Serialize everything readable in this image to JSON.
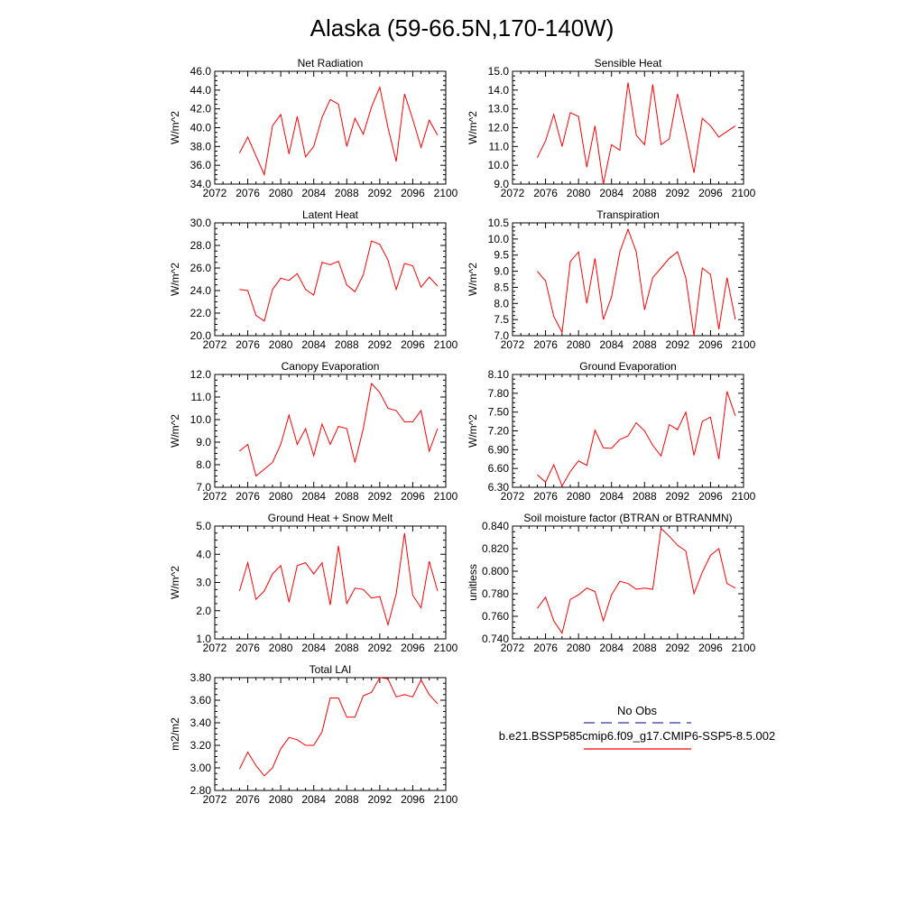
{
  "title": "Alaska (59-66.5N,170-140W)",
  "legend": {
    "obs_label": "No Obs",
    "model_label": "b.e21.BSSP585cmip6.f09_g17.CMIP6-SSP5-8.5.002",
    "obs_color": "#3333aa",
    "model_color": "#ff0000"
  },
  "chart_data": [
    {
      "type": "line",
      "title": "Net Radiation",
      "ylabel": "W/m^2",
      "xlim": [
        2072,
        2100
      ],
      "ylim": [
        34.0,
        46.0
      ],
      "xticks": [
        "2072",
        "2076",
        "2080",
        "2084",
        "2088",
        "2092",
        "2096",
        "2100"
      ],
      "yticks": [
        "34.0",
        "36.0",
        "38.0",
        "40.0",
        "42.0",
        "44.0",
        "46.0"
      ],
      "x": [
        2075,
        2076,
        2077,
        2078,
        2079,
        2080,
        2081,
        2082,
        2083,
        2084,
        2085,
        2086,
        2087,
        2088,
        2089,
        2090,
        2091,
        2092,
        2093,
        2094,
        2095,
        2096,
        2097,
        2098,
        2099
      ],
      "series": [
        {
          "values": [
            37.3,
            39.0,
            37.0,
            35.0,
            40.2,
            41.4,
            37.2,
            41.2,
            36.9,
            38.0,
            41.1,
            43.0,
            42.5,
            38.0,
            41.0,
            39.3,
            42.2,
            44.3,
            40.0,
            36.4,
            43.6,
            40.9,
            37.9,
            40.8,
            39.2
          ]
        }
      ]
    },
    {
      "type": "line",
      "title": "Sensible Heat",
      "ylabel": "W/m^2",
      "xlim": [
        2072,
        2100
      ],
      "ylim": [
        9.0,
        15.0
      ],
      "xticks": [
        "2072",
        "2076",
        "2080",
        "2084",
        "2088",
        "2092",
        "2096",
        "2100"
      ],
      "yticks": [
        "9.0",
        "10.0",
        "11.0",
        "12.0",
        "13.0",
        "14.0",
        "15.0"
      ],
      "x": [
        2075,
        2076,
        2077,
        2078,
        2079,
        2080,
        2081,
        2082,
        2083,
        2084,
        2085,
        2086,
        2087,
        2088,
        2089,
        2090,
        2091,
        2092,
        2093,
        2094,
        2095,
        2096,
        2097,
        2098,
        2099
      ],
      "series": [
        {
          "values": [
            10.4,
            11.3,
            12.7,
            11.0,
            12.8,
            12.6,
            9.9,
            12.1,
            9.0,
            11.1,
            10.8,
            14.4,
            11.6,
            11.1,
            14.3,
            11.1,
            11.4,
            13.8,
            11.8,
            9.6,
            12.5,
            12.1,
            11.5,
            11.8,
            12.1
          ]
        }
      ]
    },
    {
      "type": "line",
      "title": "Latent Heat",
      "ylabel": "W/m^2",
      "xlim": [
        2072,
        2100
      ],
      "ylim": [
        20.0,
        30.0
      ],
      "xticks": [
        "2072",
        "2076",
        "2080",
        "2084",
        "2088",
        "2092",
        "2096",
        "2100"
      ],
      "yticks": [
        "20.0",
        "22.0",
        "24.0",
        "26.0",
        "28.0",
        "30.0"
      ],
      "x": [
        2075,
        2076,
        2077,
        2078,
        2079,
        2080,
        2081,
        2082,
        2083,
        2084,
        2085,
        2086,
        2087,
        2088,
        2089,
        2090,
        2091,
        2092,
        2093,
        2094,
        2095,
        2096,
        2097,
        2098,
        2099
      ],
      "series": [
        {
          "values": [
            24.1,
            24.0,
            21.8,
            21.3,
            24.1,
            25.1,
            24.9,
            25.5,
            24.1,
            23.6,
            26.5,
            26.3,
            26.6,
            24.5,
            23.9,
            25.4,
            28.4,
            28.1,
            26.7,
            24.1,
            26.4,
            26.2,
            24.3,
            25.2,
            24.4
          ]
        }
      ]
    },
    {
      "type": "line",
      "title": "Transpiration",
      "ylabel": "W/m^2",
      "xlim": [
        2072,
        2100
      ],
      "ylim": [
        7.0,
        10.5
      ],
      "xticks": [
        "2072",
        "2076",
        "2080",
        "2084",
        "2088",
        "2092",
        "2096",
        "2100"
      ],
      "yticks": [
        "7.0",
        "7.5",
        "8.0",
        "8.5",
        "9.0",
        "9.5",
        "10.0",
        "10.5"
      ],
      "x": [
        2075,
        2076,
        2077,
        2078,
        2079,
        2080,
        2081,
        2082,
        2083,
        2084,
        2085,
        2086,
        2087,
        2088,
        2089,
        2090,
        2091,
        2092,
        2093,
        2094,
        2095,
        2096,
        2097,
        2098,
        2099
      ],
      "series": [
        {
          "values": [
            9.0,
            8.7,
            7.6,
            7.1,
            9.3,
            9.6,
            8.0,
            9.4,
            7.5,
            8.2,
            9.6,
            10.3,
            9.6,
            7.8,
            8.8,
            9.1,
            9.4,
            9.6,
            8.8,
            7.0,
            9.1,
            8.9,
            7.2,
            8.8,
            7.5
          ]
        }
      ]
    },
    {
      "type": "line",
      "title": "Canopy Evaporation",
      "ylabel": "W/m^2",
      "xlim": [
        2072,
        2100
      ],
      "ylim": [
        7.0,
        12.0
      ],
      "xticks": [
        "2072",
        "2076",
        "2080",
        "2084",
        "2088",
        "2092",
        "2096",
        "2100"
      ],
      "yticks": [
        "7.0",
        "8.0",
        "9.0",
        "10.0",
        "11.0",
        "12.0"
      ],
      "x": [
        2075,
        2076,
        2077,
        2078,
        2079,
        2080,
        2081,
        2082,
        2083,
        2084,
        2085,
        2086,
        2087,
        2088,
        2089,
        2090,
        2091,
        2092,
        2093,
        2094,
        2095,
        2096,
        2097,
        2098,
        2099
      ],
      "series": [
        {
          "values": [
            8.6,
            8.9,
            7.5,
            7.8,
            8.1,
            8.9,
            10.2,
            8.9,
            9.6,
            8.4,
            9.8,
            8.9,
            9.7,
            9.6,
            8.1,
            9.6,
            11.6,
            11.2,
            10.5,
            10.4,
            9.9,
            9.9,
            10.4,
            8.6,
            9.6
          ]
        }
      ]
    },
    {
      "type": "line",
      "title": "Ground Evaporation",
      "ylabel": "W/m^2",
      "xlim": [
        2072,
        2100
      ],
      "ylim": [
        6.3,
        8.1
      ],
      "xticks": [
        "2072",
        "2076",
        "2080",
        "2084",
        "2088",
        "2092",
        "2096",
        "2100"
      ],
      "yticks": [
        "6.30",
        "6.60",
        "6.90",
        "7.20",
        "7.50",
        "7.80",
        "8.10"
      ],
      "x": [
        2075,
        2076,
        2077,
        2078,
        2079,
        2080,
        2081,
        2082,
        2083,
        2084,
        2085,
        2086,
        2087,
        2088,
        2089,
        2090,
        2091,
        2092,
        2093,
        2094,
        2095,
        2096,
        2097,
        2098,
        2099
      ],
      "series": [
        {
          "values": [
            6.5,
            6.38,
            6.66,
            6.32,
            6.55,
            6.72,
            6.65,
            7.21,
            6.93,
            6.92,
            7.06,
            7.12,
            7.33,
            7.2,
            6.97,
            6.8,
            7.3,
            7.22,
            7.5,
            6.81,
            7.35,
            7.42,
            6.75,
            7.83,
            7.44
          ]
        }
      ]
    },
    {
      "type": "line",
      "title": "Ground Heat + Snow Melt",
      "ylabel": "W/m^2",
      "xlim": [
        2072,
        2100
      ],
      "ylim": [
        1.0,
        5.0
      ],
      "xticks": [
        "2072",
        "2076",
        "2080",
        "2084",
        "2088",
        "2092",
        "2096",
        "2100"
      ],
      "yticks": [
        "1.0",
        "2.0",
        "3.0",
        "4.0",
        "5.0"
      ],
      "x": [
        2075,
        2076,
        2077,
        2078,
        2079,
        2080,
        2081,
        2082,
        2083,
        2084,
        2085,
        2086,
        2087,
        2088,
        2089,
        2090,
        2091,
        2092,
        2093,
        2094,
        2095,
        2096,
        2097,
        2098,
        2099
      ],
      "series": [
        {
          "values": [
            2.7,
            3.7,
            2.4,
            2.7,
            3.3,
            3.6,
            2.3,
            3.6,
            3.7,
            3.3,
            3.7,
            2.2,
            4.3,
            2.25,
            2.8,
            2.75,
            2.45,
            2.5,
            1.5,
            2.6,
            4.75,
            2.55,
            2.1,
            3.75,
            2.7
          ]
        }
      ]
    },
    {
      "type": "line",
      "title": "Soil moisture factor (BTRAN or BTRANMN)",
      "ylabel": "unitless",
      "xlim": [
        2072,
        2100
      ],
      "ylim": [
        0.74,
        0.84
      ],
      "xticks": [
        "2072",
        "2076",
        "2080",
        "2084",
        "2088",
        "2092",
        "2096",
        "2100"
      ],
      "yticks": [
        "0.740",
        "0.760",
        "0.780",
        "0.800",
        "0.820",
        "0.840"
      ],
      "x": [
        2075,
        2076,
        2077,
        2078,
        2079,
        2080,
        2081,
        2082,
        2083,
        2084,
        2085,
        2086,
        2087,
        2088,
        2089,
        2090,
        2091,
        2092,
        2093,
        2094,
        2095,
        2096,
        2097,
        2098,
        2099
      ],
      "series": [
        {
          "values": [
            0.767,
            0.777,
            0.756,
            0.745,
            0.775,
            0.779,
            0.785,
            0.782,
            0.756,
            0.779,
            0.791,
            0.789,
            0.784,
            0.785,
            0.784,
            0.838,
            0.831,
            0.823,
            0.818,
            0.78,
            0.799,
            0.814,
            0.82,
            0.789,
            0.785
          ]
        }
      ]
    },
    {
      "type": "line",
      "title": "Total LAI",
      "ylabel": "m2/m2",
      "xlim": [
        2072,
        2100
      ],
      "ylim": [
        2.8,
        3.8
      ],
      "xticks": [
        "2072",
        "2076",
        "2080",
        "2084",
        "2088",
        "2092",
        "2096",
        "2100"
      ],
      "yticks": [
        "2.80",
        "3.00",
        "3.20",
        "3.40",
        "3.60",
        "3.80"
      ],
      "x": [
        2075,
        2076,
        2077,
        2078,
        2079,
        2080,
        2081,
        2082,
        2083,
        2084,
        2085,
        2086,
        2087,
        2088,
        2089,
        2090,
        2091,
        2092,
        2093,
        2094,
        2095,
        2096,
        2097,
        2098,
        2099
      ],
      "series": [
        {
          "values": [
            2.99,
            3.14,
            3.02,
            2.93,
            3.0,
            3.17,
            3.27,
            3.25,
            3.2,
            3.2,
            3.32,
            3.62,
            3.62,
            3.45,
            3.45,
            3.64,
            3.67,
            3.8,
            3.79,
            3.63,
            3.65,
            3.63,
            3.78,
            3.65,
            3.57
          ]
        }
      ]
    }
  ]
}
